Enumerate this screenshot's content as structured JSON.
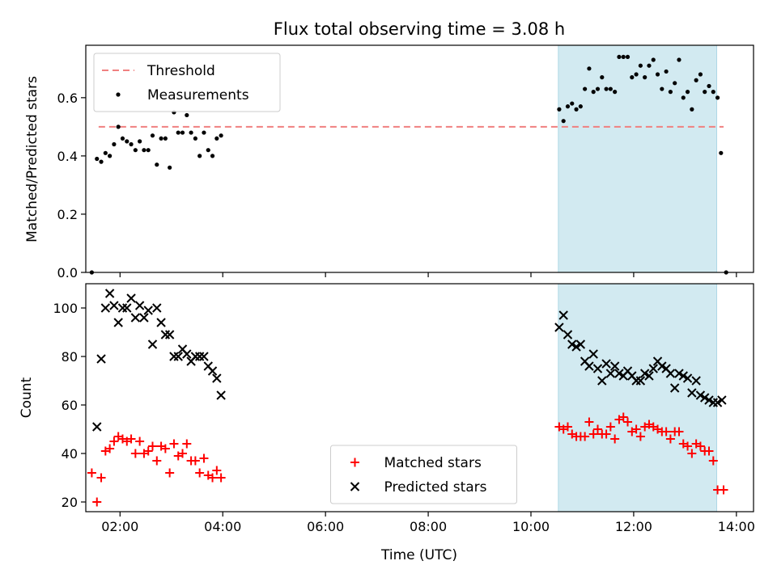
{
  "chart_data": {
    "type": "scatter",
    "title": "Flux total observing time = 3.08 h",
    "xlabel": "Time (UTC)",
    "xticks": [
      "02:00",
      "04:00",
      "06:00",
      "08:00",
      "10:00",
      "12:00",
      "14:00"
    ],
    "xlim": [
      "01:20",
      "14:20"
    ],
    "shaded_interval": {
      "start": "10:32",
      "end": "13:37",
      "color": "#add8e6"
    },
    "subplots": [
      {
        "ylabel": "Matched/Predicted stars",
        "ylim": [
          0,
          0.78
        ],
        "yticks": [
          "0.0",
          "0.2",
          "0.4",
          "0.6"
        ],
        "legend_position": "upper left",
        "threshold": {
          "name": "Threshold",
          "value": 0.5,
          "color": "#f08080",
          "style": "dashed",
          "x_start": "01:35",
          "x_end": "13:45"
        },
        "series": [
          {
            "name": "Measurements",
            "color": "#000000",
            "marker": "dot",
            "points": [
              [
                "01:27",
                0.0
              ],
              [
                "01:33",
                0.39
              ],
              [
                "01:38",
                0.38
              ],
              [
                "01:43",
                0.41
              ],
              [
                "01:48",
                0.4
              ],
              [
                "01:53",
                0.44
              ],
              [
                "01:58",
                0.5
              ],
              [
                "02:03",
                0.46
              ],
              [
                "02:08",
                0.45
              ],
              [
                "02:13",
                0.44
              ],
              [
                "02:18",
                0.42
              ],
              [
                "02:23",
                0.45
              ],
              [
                "02:28",
                0.42
              ],
              [
                "02:33",
                0.42
              ],
              [
                "02:38",
                0.47
              ],
              [
                "02:43",
                0.37
              ],
              [
                "02:48",
                0.46
              ],
              [
                "02:53",
                0.46
              ],
              [
                "02:58",
                0.36
              ],
              [
                "03:03",
                0.55
              ],
              [
                "03:08",
                0.48
              ],
              [
                "03:13",
                0.48
              ],
              [
                "03:18",
                0.54
              ],
              [
                "03:23",
                0.48
              ],
              [
                "03:28",
                0.46
              ],
              [
                "03:33",
                0.4
              ],
              [
                "03:38",
                0.48
              ],
              [
                "03:43",
                0.42
              ],
              [
                "03:48",
                0.4
              ],
              [
                "03:53",
                0.46
              ],
              [
                "03:58",
                0.47
              ],
              [
                "10:33",
                0.56
              ],
              [
                "10:38",
                0.52
              ],
              [
                "10:43",
                0.57
              ],
              [
                "10:48",
                0.58
              ],
              [
                "10:53",
                0.56
              ],
              [
                "10:58",
                0.57
              ],
              [
                "11:03",
                0.63
              ],
              [
                "11:08",
                0.7
              ],
              [
                "11:13",
                0.62
              ],
              [
                "11:18",
                0.63
              ],
              [
                "11:23",
                0.67
              ],
              [
                "11:28",
                0.63
              ],
              [
                "11:33",
                0.63
              ],
              [
                "11:38",
                0.62
              ],
              [
                "11:43",
                0.74
              ],
              [
                "11:48",
                0.74
              ],
              [
                "11:53",
                0.74
              ],
              [
                "11:58",
                0.67
              ],
              [
                "12:03",
                0.68
              ],
              [
                "12:08",
                0.71
              ],
              [
                "12:13",
                0.67
              ],
              [
                "12:18",
                0.71
              ],
              [
                "12:23",
                0.73
              ],
              [
                "12:28",
                0.68
              ],
              [
                "12:33",
                0.63
              ],
              [
                "12:38",
                0.69
              ],
              [
                "12:43",
                0.62
              ],
              [
                "12:48",
                0.65
              ],
              [
                "12:53",
                0.73
              ],
              [
                "12:58",
                0.6
              ],
              [
                "13:03",
                0.62
              ],
              [
                "13:08",
                0.56
              ],
              [
                "13:13",
                0.66
              ],
              [
                "13:18",
                0.68
              ],
              [
                "13:23",
                0.62
              ],
              [
                "13:28",
                0.64
              ],
              [
                "13:33",
                0.62
              ],
              [
                "13:38",
                0.6
              ],
              [
                "13:42",
                0.41
              ],
              [
                "13:48",
                0.0
              ]
            ]
          }
        ]
      },
      {
        "ylabel": "Count",
        "ylim": [
          16,
          110
        ],
        "yticks": [
          "20",
          "40",
          "60",
          "80",
          "100"
        ],
        "legend_position": "lower center",
        "series": [
          {
            "name": "Matched stars",
            "color": "#ff0000",
            "marker": "plus",
            "points": [
              [
                "01:27",
                32
              ],
              [
                "01:33",
                20
              ],
              [
                "01:38",
                30
              ],
              [
                "01:43",
                41
              ],
              [
                "01:48",
                42
              ],
              [
                "01:53",
                45
              ],
              [
                "01:58",
                47
              ],
              [
                "02:03",
                46
              ],
              [
                "02:08",
                45
              ],
              [
                "02:13",
                46
              ],
              [
                "02:18",
                40
              ],
              [
                "02:23",
                45
              ],
              [
                "02:28",
                40
              ],
              [
                "02:33",
                41
              ],
              [
                "02:38",
                43
              ],
              [
                "02:43",
                37
              ],
              [
                "02:48",
                43
              ],
              [
                "02:53",
                42
              ],
              [
                "02:58",
                32
              ],
              [
                "03:03",
                44
              ],
              [
                "03:08",
                39
              ],
              [
                "03:13",
                40
              ],
              [
                "03:18",
                44
              ],
              [
                "03:23",
                37
              ],
              [
                "03:28",
                37
              ],
              [
                "03:33",
                32
              ],
              [
                "03:38",
                38
              ],
              [
                "03:43",
                31
              ],
              [
                "03:48",
                30
              ],
              [
                "03:53",
                33
              ],
              [
                "03:58",
                30
              ],
              [
                "10:33",
                51
              ],
              [
                "10:38",
                50
              ],
              [
                "10:43",
                51
              ],
              [
                "10:48",
                48
              ],
              [
                "10:53",
                47
              ],
              [
                "10:58",
                47
              ],
              [
                "11:03",
                47
              ],
              [
                "11:08",
                53
              ],
              [
                "11:13",
                48
              ],
              [
                "11:18",
                50
              ],
              [
                "11:23",
                48
              ],
              [
                "11:28",
                48
              ],
              [
                "11:33",
                51
              ],
              [
                "11:38",
                46
              ],
              [
                "11:43",
                54
              ],
              [
                "11:48",
                55
              ],
              [
                "11:53",
                53
              ],
              [
                "11:58",
                49
              ],
              [
                "12:03",
                50
              ],
              [
                "12:08",
                47
              ],
              [
                "12:13",
                51
              ],
              [
                "12:18",
                52
              ],
              [
                "12:23",
                51
              ],
              [
                "12:28",
                50
              ],
              [
                "12:33",
                49
              ],
              [
                "12:38",
                49
              ],
              [
                "12:43",
                46
              ],
              [
                "12:48",
                49
              ],
              [
                "12:53",
                49
              ],
              [
                "12:58",
                44
              ],
              [
                "13:03",
                43
              ],
              [
                "13:08",
                40
              ],
              [
                "13:13",
                44
              ],
              [
                "13:18",
                43
              ],
              [
                "13:23",
                41
              ],
              [
                "13:28",
                41
              ],
              [
                "13:33",
                37
              ],
              [
                "13:38",
                25
              ],
              [
                "13:45",
                25
              ]
            ]
          },
          {
            "name": "Predicted stars",
            "color": "#000000",
            "marker": "x",
            "points": [
              [
                "01:33",
                51
              ],
              [
                "01:38",
                79
              ],
              [
                "01:43",
                100
              ],
              [
                "01:48",
                106
              ],
              [
                "01:53",
                101
              ],
              [
                "01:58",
                94
              ],
              [
                "02:03",
                100
              ],
              [
                "02:08",
                100
              ],
              [
                "02:13",
                104
              ],
              [
                "02:18",
                96
              ],
              [
                "02:23",
                101
              ],
              [
                "02:28",
                96
              ],
              [
                "02:33",
                99
              ],
              [
                "02:38",
                85
              ],
              [
                "02:43",
                100
              ],
              [
                "02:48",
                94
              ],
              [
                "02:53",
                89
              ],
              [
                "02:58",
                89
              ],
              [
                "03:03",
                80
              ],
              [
                "03:08",
                80
              ],
              [
                "03:13",
                83
              ],
              [
                "03:18",
                81
              ],
              [
                "03:23",
                78
              ],
              [
                "03:28",
                80
              ],
              [
                "03:33",
                80
              ],
              [
                "03:38",
                80
              ],
              [
                "03:43",
                76
              ],
              [
                "03:48",
                74
              ],
              [
                "03:53",
                71
              ],
              [
                "03:58",
                64
              ],
              [
                "10:33",
                92
              ],
              [
                "10:38",
                97
              ],
              [
                "10:43",
                89
              ],
              [
                "10:48",
                85
              ],
              [
                "10:53",
                84
              ],
              [
                "10:58",
                85
              ],
              [
                "11:03",
                78
              ],
              [
                "11:08",
                76
              ],
              [
                "11:13",
                81
              ],
              [
                "11:18",
                75
              ],
              [
                "11:23",
                70
              ],
              [
                "11:28",
                77
              ],
              [
                "11:33",
                73
              ],
              [
                "11:38",
                76
              ],
              [
                "11:43",
                73
              ],
              [
                "11:48",
                72
              ],
              [
                "11:53",
                74
              ],
              [
                "11:58",
                72
              ],
              [
                "12:03",
                70
              ],
              [
                "12:08",
                70
              ],
              [
                "12:13",
                73
              ],
              [
                "12:18",
                72
              ],
              [
                "12:23",
                75
              ],
              [
                "12:28",
                78
              ],
              [
                "12:33",
                76
              ],
              [
                "12:38",
                75
              ],
              [
                "12:43",
                73
              ],
              [
                "12:48",
                67
              ],
              [
                "12:53",
                73
              ],
              [
                "12:58",
                72
              ],
              [
                "13:03",
                71
              ],
              [
                "13:08",
                65
              ],
              [
                "13:13",
                70
              ],
              [
                "13:18",
                64
              ],
              [
                "13:23",
                63
              ],
              [
                "13:28",
                62
              ],
              [
                "13:33",
                61
              ],
              [
                "13:38",
                61
              ],
              [
                "13:43",
                62
              ]
            ]
          }
        ]
      }
    ]
  }
}
